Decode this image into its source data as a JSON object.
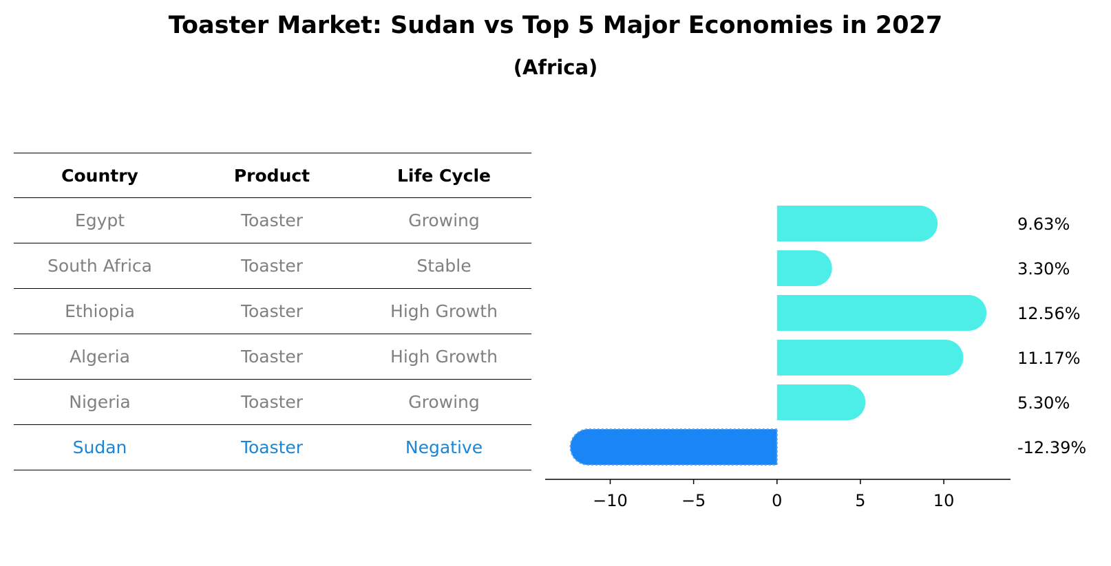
{
  "title": "Toaster Market: Sudan vs Top 5 Major Economies in 2027",
  "subtitle": "(Africa)",
  "table": {
    "headers": [
      "Country",
      "Product",
      "Life Cycle"
    ],
    "rows": [
      {
        "country": "Egypt",
        "product": "Toaster",
        "life_cycle": "Growing"
      },
      {
        "country": "South Africa",
        "product": "Toaster",
        "life_cycle": "Stable"
      },
      {
        "country": "Ethiopia",
        "product": "Toaster",
        "life_cycle": "High Growth"
      },
      {
        "country": "Algeria",
        "product": "Toaster",
        "life_cycle": "High Growth"
      },
      {
        "country": "Nigeria",
        "product": "Toaster",
        "life_cycle": "Growing"
      },
      {
        "country": "Sudan",
        "product": "Toaster",
        "life_cycle": "Negative"
      }
    ]
  },
  "chart_data": {
    "type": "bar",
    "orientation": "horizontal",
    "title": "Toaster Market: Sudan vs Top 5 Major Economies in 2027",
    "subtitle": "(Africa)",
    "categories": [
      "Egypt",
      "South Africa",
      "Ethiopia",
      "Algeria",
      "Nigeria",
      "Sudan"
    ],
    "values": [
      9.63,
      3.3,
      12.56,
      11.17,
      5.3,
      -12.39
    ],
    "value_labels": [
      "9.63%",
      "3.30%",
      "12.56%",
      "11.17%",
      "5.30%",
      "-12.39%"
    ],
    "highlight": "Sudan",
    "xlim": [
      -13.9,
      14
    ],
    "xticks": [
      -10,
      -5,
      0,
      5,
      10
    ],
    "xtick_labels": [
      "−10",
      "−5",
      "0",
      "5",
      "10"
    ],
    "xlabel": "",
    "ylabel": "",
    "colors": {
      "default": "#4deee8",
      "highlight": "#1a86f5",
      "highlight_text": "#1a86d6"
    }
  }
}
